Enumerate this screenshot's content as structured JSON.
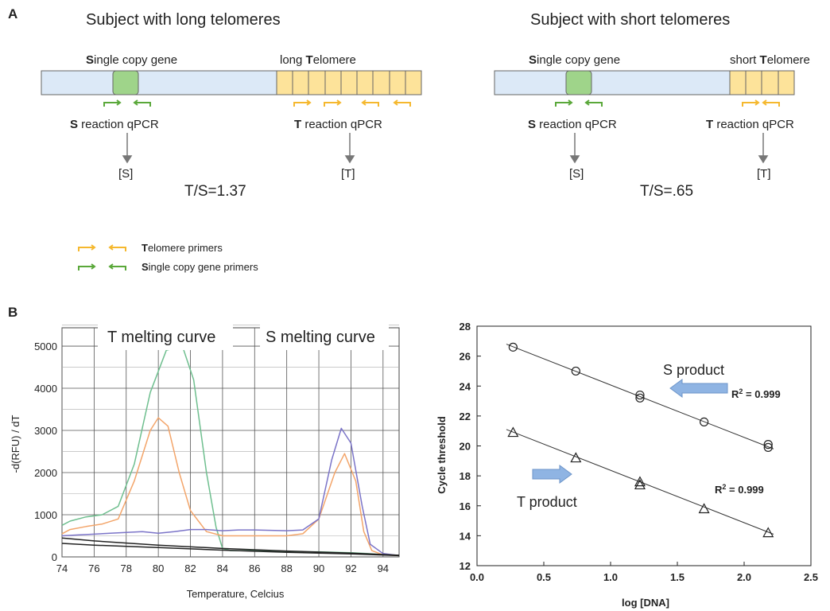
{
  "panel_a": {
    "letter": "A",
    "left": {
      "title": "Subject with long telomeres",
      "gene_label_initial": "S",
      "gene_label_rest": "ingle copy gene",
      "telomere_label_pre": "long ",
      "telomere_label_initial": "T",
      "telomere_label_rest": "elomere",
      "s_reaction_initial": "S",
      "s_reaction_rest": " reaction qPCR",
      "t_reaction_initial": "T",
      "t_reaction_rest": " reaction qPCR",
      "s_result": "[S]",
      "t_result": "[T]",
      "ratio": "T/S=1.37"
    },
    "right": {
      "title": "Subject with short telomeres",
      "gene_label_initial": "S",
      "gene_label_rest": "ingle copy gene",
      "telomere_label_pre": "short ",
      "telomere_label_initial": "T",
      "telomere_label_rest": "elomere",
      "s_reaction_initial": "S",
      "s_reaction_rest": " reaction qPCR",
      "t_reaction_initial": "T",
      "t_reaction_rest": " reaction qPCR",
      "s_result": "[S]",
      "t_result": "[T]",
      "ratio": "T/S=.65"
    },
    "legend": [
      {
        "initial": "T",
        "rest": "elomere primers",
        "color": "#f5b82e"
      },
      {
        "initial": "S",
        "rest": "ingle copy gene primers",
        "color": "#5aa83a"
      }
    ],
    "colors": {
      "chromosome": "#dce9f7",
      "gene": "#9fd48a",
      "telomere": "#fde39a",
      "outline": "#666666"
    }
  },
  "panel_b": {
    "letter": "B",
    "melt_chart": {
      "title_t": "T melting curve",
      "title_s": "S melting curve",
      "xlabel": "Temperature, Celcius",
      "ylabel": "-d(RFU) / dT"
    },
    "std_chart": {
      "xlabel": "log [DNA]",
      "ylabel": "Cycle threshold",
      "s_label": "S product",
      "t_label": "T product",
      "r2_s": "R",
      "r2_s_sup": "2",
      "r2_s_val": " = 0.999",
      "r2_t": "R",
      "r2_t_sup": "2",
      "r2_t_val": " = 0.999",
      "arrow_color": "#8fb4e3"
    }
  },
  "chart_data": [
    {
      "type": "line",
      "title": "T melting curve / S melting curve",
      "xlabel": "Temperature, Celcius",
      "ylabel": "-d(RFU) / dT",
      "xlim": [
        74,
        95
      ],
      "ylim": [
        0,
        5000
      ],
      "xticks": [
        74,
        76,
        78,
        80,
        82,
        84,
        86,
        88,
        90,
        92,
        94
      ],
      "yticks": [
        0,
        1000,
        2000,
        3000,
        4000,
        5000
      ],
      "grid": true,
      "series": [
        {
          "color": "#6fbf8f",
          "x": [
            74,
            74.5,
            75.5,
            76.5,
            77.5,
            78.5,
            79.5,
            80.5,
            81.5,
            82.2,
            83,
            83.6,
            84,
            84.5,
            86,
            88,
            90,
            92,
            93,
            95
          ],
          "y": [
            750,
            850,
            950,
            1000,
            1200,
            2200,
            3900,
            4900,
            5000,
            4200,
            2000,
            700,
            200,
            150,
            150,
            120,
            120,
            100,
            80,
            30
          ]
        },
        {
          "color": "#f3a56a",
          "x": [
            74,
            74.5,
            75.5,
            76.5,
            77.5,
            78.5,
            79.5,
            80,
            80.6,
            81.3,
            82,
            83,
            84,
            85,
            86,
            88,
            89,
            90,
            91,
            91.6,
            92.3,
            92.8,
            93.3,
            94,
            95
          ],
          "y": [
            550,
            650,
            720,
            780,
            900,
            1800,
            3000,
            3300,
            3100,
            2000,
            1100,
            600,
            500,
            500,
            500,
            500,
            550,
            900,
            2000,
            2450,
            1800,
            600,
            150,
            50,
            30
          ]
        },
        {
          "color": "#7b74c8",
          "x": [
            74,
            75,
            76,
            77,
            78,
            79,
            80,
            81,
            82,
            83,
            84,
            85,
            86,
            87,
            88,
            89,
            90,
            90.8,
            91.4,
            92,
            92.7,
            93.2,
            94,
            95
          ],
          "y": [
            500,
            520,
            540,
            560,
            580,
            600,
            560,
            600,
            650,
            650,
            620,
            640,
            640,
            630,
            620,
            640,
            900,
            2300,
            3050,
            2700,
            1200,
            300,
            80,
            30
          ]
        },
        {
          "color": "#222222",
          "x": [
            74,
            76,
            80,
            84,
            88,
            92,
            95
          ],
          "y": [
            450,
            380,
            280,
            200,
            140,
            90,
            40
          ]
        },
        {
          "color": "#222222",
          "x": [
            74,
            76,
            80,
            84,
            88,
            92,
            95
          ],
          "y": [
            320,
            280,
            220,
            160,
            110,
            70,
            30
          ]
        }
      ]
    },
    {
      "type": "scatter",
      "xlabel": "log [DNA]",
      "ylabel": "Cycle threshold",
      "xlim": [
        0.0,
        2.5
      ],
      "ylim": [
        12,
        28
      ],
      "xticks": [
        "0.0",
        "0.5",
        "1.0",
        "1.5",
        "2.0",
        "2.5"
      ],
      "yticks": [
        "12",
        "14",
        "16",
        "18",
        "20",
        "22",
        "24",
        "26",
        "28"
      ],
      "grid": false,
      "series": [
        {
          "name": "S product",
          "marker": "circle",
          "x": [
            0.27,
            0.74,
            1.22,
            1.22,
            1.7,
            2.18,
            2.18
          ],
          "y": [
            26.6,
            25.0,
            23.4,
            23.2,
            21.6,
            20.1,
            19.9
          ],
          "fit": {
            "x": [
              0.22,
              2.22
            ],
            "y": [
              26.8,
              19.8
            ]
          },
          "r2": 0.999
        },
        {
          "name": "T product",
          "marker": "triangle",
          "x": [
            0.27,
            0.74,
            1.22,
            1.22,
            1.7,
            2.18
          ],
          "y": [
            20.9,
            19.2,
            17.6,
            17.4,
            15.8,
            14.2
          ],
          "fit": {
            "x": [
              0.22,
              2.22
            ],
            "y": [
              21.1,
              14.1
            ]
          },
          "r2": 0.999
        }
      ]
    }
  ]
}
